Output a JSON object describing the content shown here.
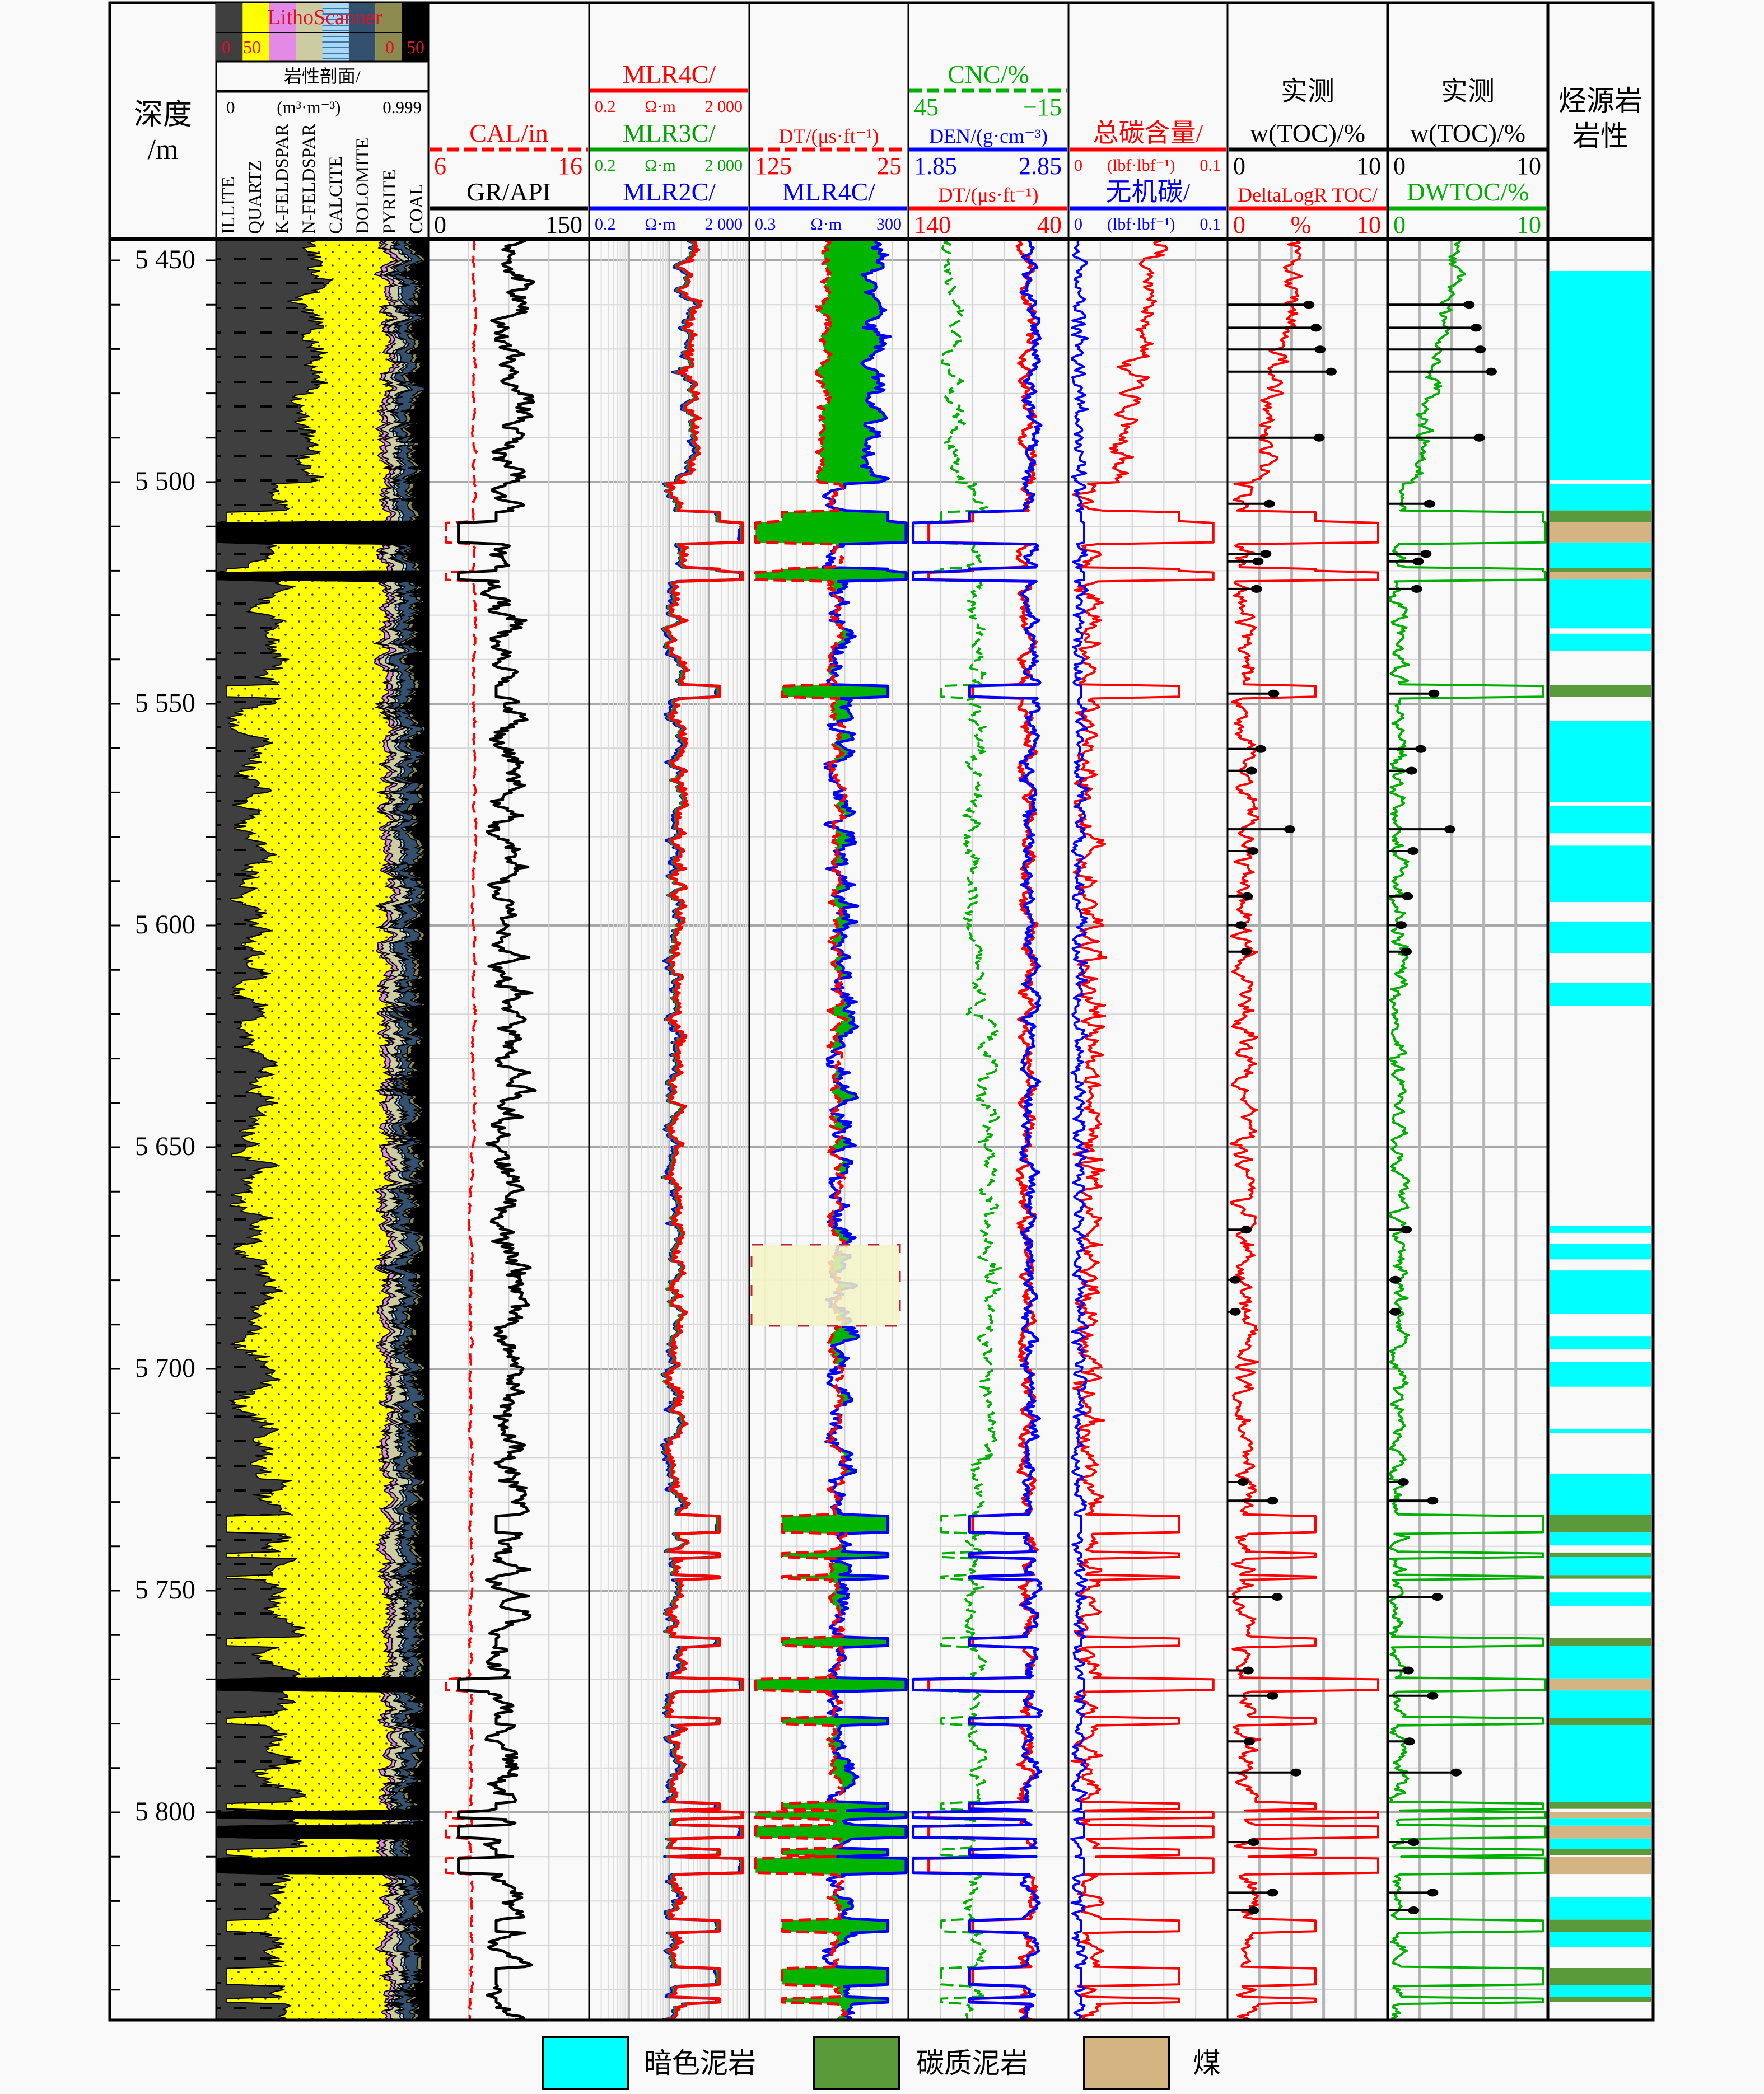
{
  "header": {
    "depth": {
      "title": "深度",
      "unit": "/m"
    },
    "litho": {
      "strip_title": "LithoScanner",
      "strip_left_min": "0",
      "strip_left_max": "50",
      "strip_right_min": "0",
      "strip_right_max": "50",
      "title": "岩性剖面/",
      "min": "0",
      "unit": "(m³·m⁻³)",
      "max": "0.999",
      "minerals": [
        "ILLITE",
        "QUARTZ",
        "K-FELDSPAR",
        "N-FELDSPAR",
        "CALCITE",
        "DOLOMITE",
        "PYRITE",
        "COAL"
      ],
      "mineral_colors": [
        "#3f3f3f",
        "#ffff00",
        "#e28ae6",
        "#cdcba2",
        "#a9d8f2",
        "#33506f",
        "#8c8a4e",
        "#000000"
      ]
    },
    "source_rock": {
      "title_line1": "烃源岩",
      "title_line2": "岩性"
    }
  },
  "chart_data": {
    "type": "line",
    "title": "",
    "ylabel": "深度/m",
    "depth_range": [
      5445,
      5847
    ],
    "depth_ticks": [
      "5 450",
      "5 500",
      "5 550",
      "5 600",
      "5 650",
      "5 700",
      "5 750",
      "5 800"
    ],
    "depth_tick_values": [
      5450,
      5500,
      5550,
      5600,
      5650,
      5700,
      5750,
      5800
    ],
    "grid": true,
    "tracks": [
      {
        "id": "cal-gr",
        "curves": [
          {
            "label": "CAL/in",
            "min": "6",
            "max": "16",
            "unit": "",
            "color": "#ff0000",
            "dash": true
          },
          {
            "label": "GR/API",
            "min": "0",
            "max": "150",
            "unit": "",
            "color": "#000000"
          }
        ]
      },
      {
        "id": "resistivity",
        "scale": "log",
        "curves": [
          {
            "label": "MLR4C/",
            "min": "0.2",
            "unit": "Ω·m",
            "max": "2 000",
            "color": "#ff0000"
          },
          {
            "label": "MLR3C/",
            "min": "0.2",
            "unit": "Ω·m",
            "max": "2 000",
            "color": "#00a000"
          },
          {
            "label": "MLR2C/",
            "min": "0.2",
            "unit": "Ω·m",
            "max": "2 000",
            "color": "#0000ff"
          }
        ]
      },
      {
        "id": "dt-mlr4c",
        "fill_color": "#00b400",
        "curves": [
          {
            "label": "DT/(μs·ft⁻¹)",
            "min": "125",
            "max": "25",
            "unit": "",
            "color": "#ff0000",
            "dash": true
          },
          {
            "label": "MLR4C/",
            "min": "0.3",
            "unit": "Ω·m",
            "max": "300",
            "color": "#0000ff"
          }
        ]
      },
      {
        "id": "porosity",
        "curves": [
          {
            "label": "CNC/%",
            "min": "45",
            "max": "−15",
            "unit": "",
            "color": "#00b000",
            "dash": true
          },
          {
            "label": "DEN/(g·cm⁻³)",
            "min": "1.85",
            "max": "2.85",
            "unit": "",
            "color": "#0000ff"
          },
          {
            "label": "DT/(μs·ft⁻¹)",
            "min": "140",
            "max": "40",
            "unit": "",
            "color": "#ff0000"
          }
        ]
      },
      {
        "id": "carbon",
        "curves": [
          {
            "label": "总碳含量/",
            "min": "0",
            "unit": "(lbf·lbf⁻¹)",
            "max": "0.1",
            "color": "#ff0000"
          },
          {
            "label": "无机碳/",
            "min": "0",
            "unit": "(lbf·lbf⁻¹)",
            "max": "0.1",
            "color": "#0000ff"
          }
        ]
      },
      {
        "id": "toc-deltalogr",
        "title": "实测",
        "curves": [
          {
            "label": "w(TOC)/%",
            "min": "0",
            "max": "10",
            "unit": "",
            "color": "#000000"
          },
          {
            "label": "DeltaLogR TOC/",
            "min": "0",
            "unit": "%",
            "max": "10",
            "color": "#ff0000"
          }
        ]
      },
      {
        "id": "toc-dwtoc",
        "title": "实测",
        "curves": [
          {
            "label": "w(TOC)/%",
            "min": "0",
            "max": "10",
            "unit": "",
            "color": "#000000"
          },
          {
            "label": "DWTOC/%",
            "min": "0",
            "max": "10",
            "unit": "",
            "color": "#00b000"
          }
        ]
      }
    ],
    "measured_toc": [
      [
        5460.0,
        5.08
      ],
      [
        5465.2,
        5.52
      ],
      [
        5470.1,
        5.78
      ],
      [
        5475.1,
        6.47
      ],
      [
        5490.0,
        5.72
      ],
      [
        5504.9,
        2.61
      ],
      [
        5516.2,
        2.39
      ],
      [
        5517.9,
        1.9
      ],
      [
        5524.1,
        1.81
      ],
      [
        5547.7,
        2.88
      ],
      [
        5560.2,
        2.07
      ],
      [
        5565.1,
        1.49
      ],
      [
        5578.3,
        3.88
      ],
      [
        5583.2,
        1.58
      ],
      [
        5593.4,
        1.23
      ],
      [
        5599.9,
        0.84
      ],
      [
        5605.9,
        1.16
      ],
      [
        5668.6,
        1.16
      ],
      [
        5679.9,
        0.48
      ],
      [
        5687.1,
        0.48
      ],
      [
        5725.5,
        0.97
      ],
      [
        5729.7,
        2.81
      ],
      [
        5751.4,
        3.1
      ],
      [
        5768.0,
        1.29
      ],
      [
        5773.7,
        2.81
      ],
      [
        5784.0,
        1.36
      ],
      [
        5791.0,
        4.27
      ],
      [
        5806.7,
        1.62
      ],
      [
        5818.1,
        2.81
      ],
      [
        5822.1,
        1.62
      ]
    ],
    "source_rock_intervals": [
      [
        5452.4,
        5499.6,
        0
      ],
      [
        5500.4,
        5506.4,
        0
      ],
      [
        5506.4,
        5509.1,
        1
      ],
      [
        5509.1,
        5513.6,
        2
      ],
      [
        5513.6,
        5519.4,
        0
      ],
      [
        5519.4,
        5520.3,
        1
      ],
      [
        5520.3,
        5522.0,
        2
      ],
      [
        5522.0,
        5533.0,
        0
      ],
      [
        5534.2,
        5538.0,
        0
      ],
      [
        5545.7,
        5548.4,
        1
      ],
      [
        5553.9,
        5572.2,
        0
      ],
      [
        5573.0,
        5579.2,
        0
      ],
      [
        5582.0,
        5594.7,
        0
      ],
      [
        5599.1,
        5606.2,
        0
      ],
      [
        5612.9,
        5618.1,
        0
      ],
      [
        5667.7,
        5669.3,
        0
      ],
      [
        5671.8,
        5675.3,
        0
      ],
      [
        5677.8,
        5687.5,
        0
      ],
      [
        5692.7,
        5695.6,
        0
      ],
      [
        5698.4,
        5704.0,
        0
      ],
      [
        5713.5,
        5714.4,
        0
      ],
      [
        5723.6,
        5732.9,
        0
      ],
      [
        5732.9,
        5736.9,
        1
      ],
      [
        5736.9,
        5739.8,
        0
      ],
      [
        5741.4,
        5742.4,
        1
      ],
      [
        5742.4,
        5746.5,
        0
      ],
      [
        5746.5,
        5747.3,
        1
      ],
      [
        5750.4,
        5753.4,
        0
      ],
      [
        5760.7,
        5762.4,
        1
      ],
      [
        5762.4,
        5769.8,
        0
      ],
      [
        5769.8,
        5772.5,
        2
      ],
      [
        5772.5,
        5778.7,
        0
      ],
      [
        5778.7,
        5780.3,
        1
      ],
      [
        5780.3,
        5797.7,
        0
      ],
      [
        5797.7,
        5799.2,
        1
      ],
      [
        5799.9,
        5801.3,
        2
      ],
      [
        5801.3,
        5803.0,
        0
      ],
      [
        5803.0,
        5805.9,
        2
      ],
      [
        5805.9,
        5808.3,
        0
      ],
      [
        5808.3,
        5809.6,
        1
      ],
      [
        5810.1,
        5813.9,
        2
      ],
      [
        5819.2,
        5824.2,
        0
      ],
      [
        5824.2,
        5826.9,
        1
      ],
      [
        5826.9,
        5830.4,
        0
      ],
      [
        5835.1,
        5838.9,
        1
      ],
      [
        5838.9,
        5841.6,
        0
      ],
      [
        5841.6,
        5842.8,
        1
      ]
    ],
    "legend": [
      {
        "label": "暗色泥岩",
        "color": "#00ffff"
      },
      {
        "label": "碳质泥岩",
        "color": "#5b9a3a"
      },
      {
        "label": "煤",
        "color": "#d4b483"
      }
    ]
  }
}
